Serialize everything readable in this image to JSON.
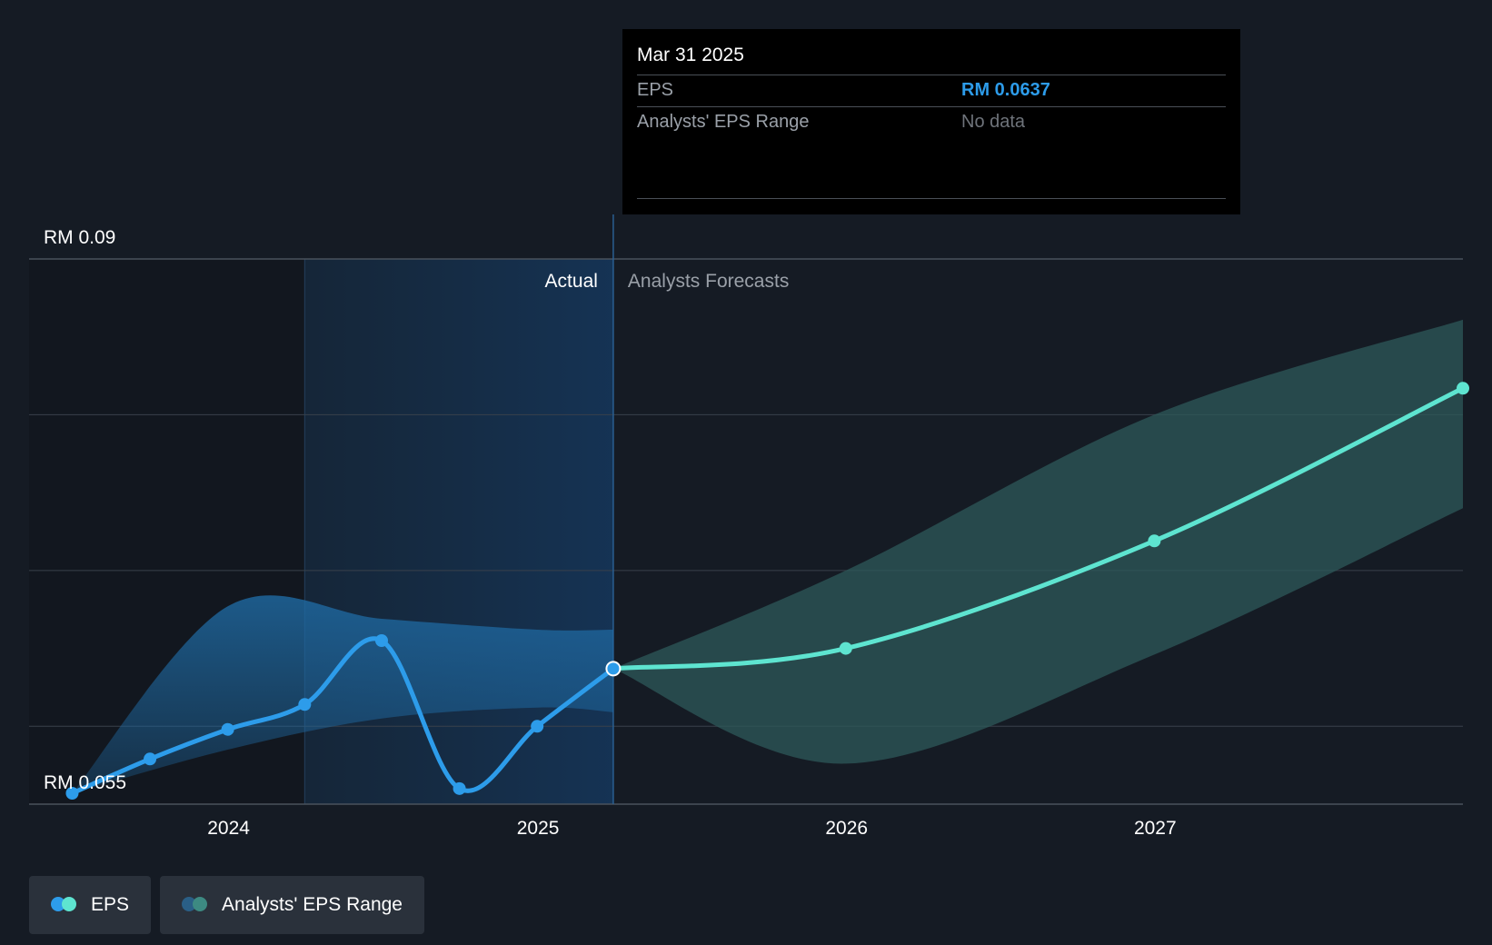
{
  "tooltip": {
    "date": "Mar 31 2025",
    "rows": [
      {
        "label": "EPS",
        "value": "RM 0.0637"
      },
      {
        "label": "Analysts' EPS Range",
        "value": "No data"
      }
    ]
  },
  "labels": {
    "actual": "Actual",
    "forecast": "Analysts Forecasts"
  },
  "legend": [
    {
      "label": "EPS",
      "colors": [
        "#2d9cea",
        "#5ee4d0"
      ]
    },
    {
      "label": "Analysts' EPS Range",
      "colors": [
        "#2a5f86",
        "#3d8a82"
      ]
    }
  ],
  "colors": {
    "background": "#151b24",
    "actual_line": "#2d9cea",
    "forecast_line": "#5ee4d0",
    "actual_band": "#1e5f91",
    "forecast_band": "#2e5a5a",
    "grid": "#39414b"
  },
  "chart_data": {
    "type": "line",
    "ylim": [
      0.055,
      0.09
    ],
    "y_tick_labels": [
      "RM 0.09",
      "RM 0.055"
    ],
    "x_ticks": [
      {
        "label": "2024",
        "x": "2024-01-01"
      },
      {
        "label": "2025",
        "x": "2025-01-01"
      },
      {
        "label": "2026",
        "x": "2026-01-01"
      },
      {
        "label": "2027",
        "x": "2027-01-01"
      }
    ],
    "xlim": [
      "2023-05-10",
      "2027-12-31"
    ],
    "divider_date": "2025-03-31",
    "highlight_start": "2024-03-31",
    "series": [
      {
        "name": "EPS",
        "points": [
          {
            "x": "2023-06-30",
            "y": 0.0557
          },
          {
            "x": "2023-09-30",
            "y": 0.0579
          },
          {
            "x": "2023-12-31",
            "y": 0.0598
          },
          {
            "x": "2024-03-31",
            "y": 0.0614
          },
          {
            "x": "2024-06-30",
            "y": 0.0655
          },
          {
            "x": "2024-09-30",
            "y": 0.056
          },
          {
            "x": "2024-12-31",
            "y": 0.06
          },
          {
            "x": "2025-03-31",
            "y": 0.0637
          }
        ]
      },
      {
        "name": "EPS forecast",
        "points": [
          {
            "x": "2025-03-31",
            "y": 0.0637
          },
          {
            "x": "2025-12-31",
            "y": 0.065
          },
          {
            "x": "2026-12-31",
            "y": 0.0719
          },
          {
            "x": "2027-12-31",
            "y": 0.0817
          }
        ]
      }
    ],
    "range_band_actual": {
      "x": [
        "2023-06-30",
        "2023-12-31",
        "2024-06-30",
        "2024-12-31",
        "2025-03-31"
      ],
      "upper": [
        0.0557,
        0.0677,
        0.0669,
        0.0662,
        0.0662
      ],
      "lower": [
        0.0557,
        0.0585,
        0.0605,
        0.0612,
        0.0609
      ]
    },
    "range_band_forecast": {
      "x": [
        "2025-03-31",
        "2025-12-31",
        "2026-12-31",
        "2027-12-31"
      ],
      "upper": [
        0.0637,
        0.07,
        0.08,
        0.0861
      ],
      "lower": [
        0.0637,
        0.0576,
        0.0646,
        0.074
      ]
    }
  }
}
